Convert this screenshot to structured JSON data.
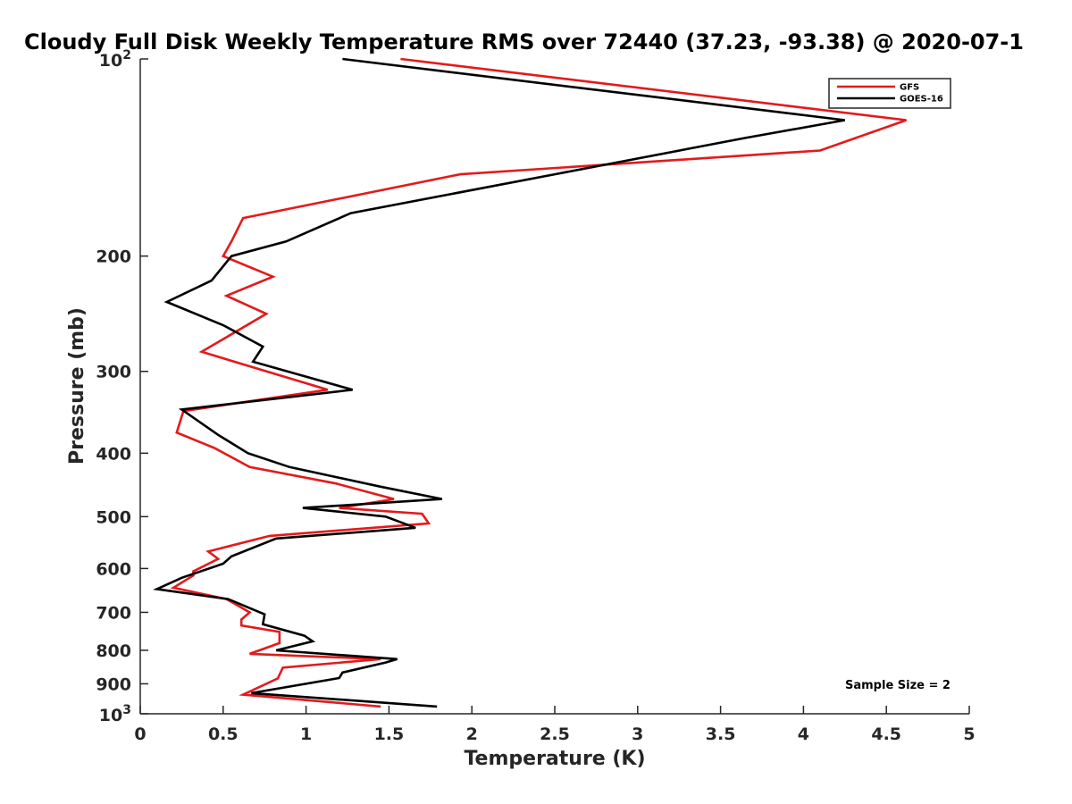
{
  "chart_data": {
    "type": "line",
    "title": "Cloudy Full Disk Weekly Temperature RMS over 72440 (37.23, -93.38) @ 2020-07-1",
    "xlabel": "Temperature (K)",
    "ylabel": "Pressure (mb)",
    "xlim": [
      0,
      5
    ],
    "ylim": [
      100,
      1000
    ],
    "y_scale": "log",
    "y_reversed": true,
    "grid": false,
    "legend_position": "top-right",
    "x_ticks": [
      "0",
      "0.5",
      "1",
      "1.5",
      "2",
      "2.5",
      "3",
      "3.5",
      "4",
      "4.5",
      "5"
    ],
    "y_ticks": [
      {
        "value": 100,
        "base": "10",
        "exp": "2"
      },
      {
        "value": 200,
        "label": "200"
      },
      {
        "value": 300,
        "label": "300"
      },
      {
        "value": 400,
        "label": "400"
      },
      {
        "value": 500,
        "label": "500"
      },
      {
        "value": 600,
        "label": "600"
      },
      {
        "value": 700,
        "label": "700"
      },
      {
        "value": 800,
        "label": "800"
      },
      {
        "value": 900,
        "label": "900"
      },
      {
        "value": 1000,
        "base": "10",
        "exp": "3"
      }
    ],
    "annotation": "Sample Size = 2",
    "series": [
      {
        "name": "GFS",
        "color": "#e31a1c",
        "points": [
          [
            1.57,
            100
          ],
          [
            4.62,
            124
          ],
          [
            4.1,
            138
          ],
          [
            1.93,
            150
          ],
          [
            0.62,
            175
          ],
          [
            0.55,
            190
          ],
          [
            0.5,
            200
          ],
          [
            0.8,
            215
          ],
          [
            0.52,
            230
          ],
          [
            0.76,
            245
          ],
          [
            0.37,
            280
          ],
          [
            1.13,
            320
          ],
          [
            0.26,
            345
          ],
          [
            0.22,
            372
          ],
          [
            0.45,
            393
          ],
          [
            0.66,
            420
          ],
          [
            1.18,
            445
          ],
          [
            1.53,
            470
          ],
          [
            1.2,
            485
          ],
          [
            1.7,
            495
          ],
          [
            1.74,
            512
          ],
          [
            0.78,
            535
          ],
          [
            0.41,
            565
          ],
          [
            0.47,
            580
          ],
          [
            0.32,
            606
          ],
          [
            0.32,
            615
          ],
          [
            0.2,
            642
          ],
          [
            0.52,
            668
          ],
          [
            0.66,
            700
          ],
          [
            0.61,
            718
          ],
          [
            0.61,
            733
          ],
          [
            0.84,
            750
          ],
          [
            0.84,
            780
          ],
          [
            0.66,
            810
          ],
          [
            1.45,
            825
          ],
          [
            0.86,
            850
          ],
          [
            0.83,
            883
          ],
          [
            0.62,
            935
          ],
          [
            1.45,
            975
          ]
        ]
      },
      {
        "name": "GOES-16",
        "color": "#000000",
        "points": [
          [
            1.22,
            100
          ],
          [
            4.25,
            124
          ],
          [
            3.65,
            132
          ],
          [
            2.5,
            150
          ],
          [
            1.27,
            172
          ],
          [
            0.88,
            190
          ],
          [
            0.55,
            200
          ],
          [
            0.43,
            218
          ],
          [
            0.16,
            235
          ],
          [
            0.5,
            255
          ],
          [
            0.74,
            275
          ],
          [
            0.68,
            290
          ],
          [
            1.28,
            320
          ],
          [
            0.25,
            343
          ],
          [
            0.47,
            375
          ],
          [
            0.65,
            400
          ],
          [
            0.9,
            420
          ],
          [
            1.45,
            450
          ],
          [
            1.82,
            470
          ],
          [
            0.98,
            485
          ],
          [
            1.48,
            500
          ],
          [
            1.66,
            520
          ],
          [
            0.82,
            540
          ],
          [
            0.55,
            575
          ],
          [
            0.5,
            590
          ],
          [
            0.25,
            620
          ],
          [
            0.1,
            645
          ],
          [
            0.53,
            668
          ],
          [
            0.75,
            705
          ],
          [
            0.74,
            730
          ],
          [
            0.99,
            760
          ],
          [
            1.04,
            775
          ],
          [
            0.82,
            800
          ],
          [
            1.55,
            825
          ],
          [
            1.48,
            835
          ],
          [
            1.22,
            865
          ],
          [
            1.2,
            882
          ],
          [
            0.67,
            930
          ],
          [
            1.79,
            975
          ]
        ]
      }
    ]
  }
}
